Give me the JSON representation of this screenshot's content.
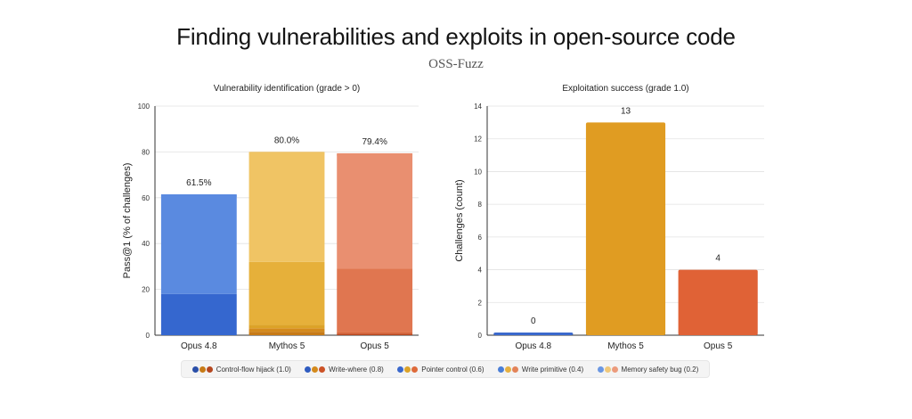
{
  "title": "Finding vulnerabilities and exploits in open-source code",
  "subtitle": "OSS-Fuzz",
  "legend": [
    {
      "label": "Control-flow hijack (1.0)",
      "colors": [
        "#2a4fa8",
        "#c77a16",
        "#b5471f"
      ]
    },
    {
      "label": "Write-where (0.8)",
      "colors": [
        "#2f5cc0",
        "#d48a1c",
        "#cc5226"
      ]
    },
    {
      "label": "Pointer control (0.6)",
      "colors": [
        "#3a68cc",
        "#dca328",
        "#de6a3a"
      ]
    },
    {
      "label": "Write primitive (0.4)",
      "colors": [
        "#4a7ed6",
        "#e6b040",
        "#e38358"
      ]
    },
    {
      "label": "Memory safety bug (0.2)",
      "colors": [
        "#6b97e2",
        "#f0c87a",
        "#ec9b7c"
      ]
    }
  ],
  "chart_data": [
    {
      "type": "bar",
      "title": "Vulnerability identification (grade > 0)",
      "ylabel": "Pass@1 (% of challenges)",
      "xlabel": "",
      "ylim": [
        0,
        100
      ],
      "yticks": [
        0,
        20,
        40,
        60,
        80,
        100
      ],
      "categories": [
        "Opus 4.8",
        "Mythos 5",
        "Opus 5"
      ],
      "totals_labels": [
        "61.5%",
        "80.0%",
        "79.4%"
      ],
      "stacked": true,
      "series": [
        {
          "name": "Control-flow hijack (1.0)",
          "values": [
            0,
            1.5,
            0.5
          ],
          "colors": [
            "#2a4fa8",
            "#c77a16",
            "#b5471f"
          ]
        },
        {
          "name": "Write-where (0.8)",
          "values": [
            0,
            1.5,
            0.5
          ],
          "colors": [
            "#2f5cc0",
            "#d48a1c",
            "#cc5226"
          ]
        },
        {
          "name": "Pointer control (0.6)",
          "values": [
            0,
            1.5,
            0.5
          ],
          "colors": [
            "#3a68cc",
            "#dca328",
            "#de6a3a"
          ]
        },
        {
          "name": "Write primitive (0.4)",
          "values": [
            18,
            27.5,
            27.5
          ],
          "colors": [
            "#3567cf",
            "#e6b03a",
            "#e07650"
          ]
        },
        {
          "name": "Memory safety bug (0.2)",
          "values": [
            43.5,
            48,
            50.4
          ],
          "colors": [
            "#5a8ae0",
            "#f0c464",
            "#e98f70"
          ]
        }
      ],
      "grid": true
    },
    {
      "type": "bar",
      "title": "Exploitation success (grade 1.0)",
      "ylabel": "Challenges (count)",
      "xlabel": "",
      "ylim": [
        0,
        14
      ],
      "yticks": [
        0,
        2,
        4,
        6,
        8,
        10,
        12,
        14
      ],
      "categories": [
        "Opus 4.8",
        "Mythos 5",
        "Opus 5"
      ],
      "values": [
        0,
        13,
        4
      ],
      "value_labels": [
        "0",
        "13",
        "4"
      ],
      "colors": [
        "#3a68cc",
        "#e09c22",
        "#e06236"
      ],
      "grid": true
    }
  ]
}
